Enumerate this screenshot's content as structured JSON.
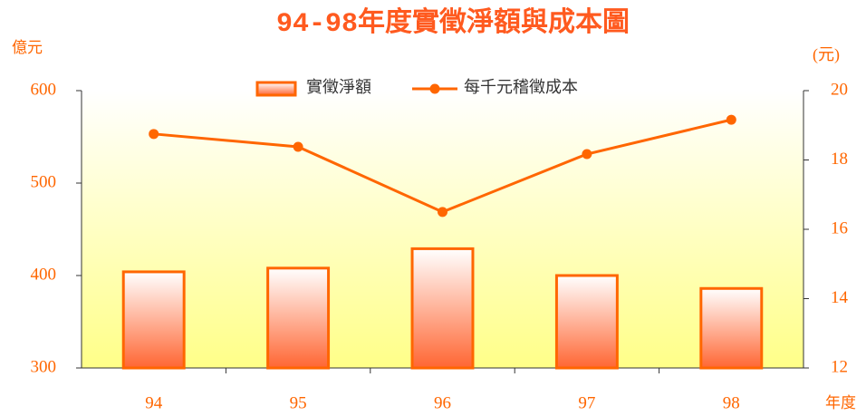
{
  "chart_data": {
    "type": "bar",
    "title": "94-98年度實徵淨額與成本圖",
    "y_label": "億元",
    "y2_label": "(元)",
    "x_label": "年度",
    "categories": [
      "94",
      "95",
      "96",
      "97",
      "98"
    ],
    "series": [
      {
        "name": "實徵淨額",
        "color": "#ff6600",
        "values": [
          404,
          408,
          429,
          400,
          386
        ]
      },
      {
        "name": "每千元稽徵成本",
        "color": "#ff6600",
        "axis": "y2",
        "values": [
          18.75,
          18.38,
          16.5,
          18.17,
          19.16
        ]
      }
    ],
    "ylim": [
      300,
      600
    ],
    "yticks": [
      300,
      400,
      500,
      600
    ],
    "y2lim": [
      12,
      20
    ],
    "y2ticks": [
      12,
      14,
      16,
      18,
      20
    ],
    "legend": "top"
  }
}
